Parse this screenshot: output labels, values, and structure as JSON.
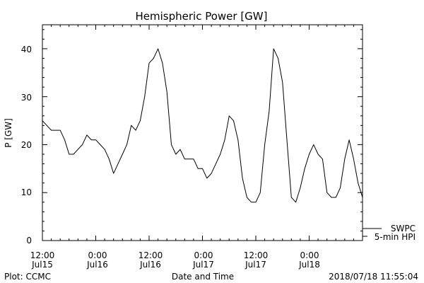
{
  "chart_data": {
    "type": "line",
    "title": "Hemispheric Power [GW]",
    "ylabel": "P [GW]",
    "xlabel": "Date and Time",
    "ylim": [
      0,
      45
    ],
    "xlim": [
      "2018-07-15 12:00",
      "2018-07-18 12:00"
    ],
    "yticks": [
      "0",
      "10",
      "20",
      "30",
      "40"
    ],
    "xticks": [
      {
        "time": "2018-07-15 12:00",
        "line1": "12:00",
        "line2": "Jul15"
      },
      {
        "time": "2018-07-16 00:00",
        "line1": "0:00",
        "line2": "Jul16"
      },
      {
        "time": "2018-07-16 12:00",
        "line1": "12:00",
        "line2": "Jul16"
      },
      {
        "time": "2018-07-17 00:00",
        "line1": "0:00",
        "line2": "Jul17"
      },
      {
        "time": "2018-07-17 12:00",
        "line1": "12:00",
        "line2": "Jul17"
      },
      {
        "time": "2018-07-18 00:00",
        "line1": "0:00",
        "line2": "Jul18"
      }
    ],
    "legend": {
      "label1": "SWPC",
      "label2": "5-min HPI",
      "placement": "right"
    },
    "series": [
      {
        "name": "5-min HPI",
        "color": "#000000",
        "x": [
          "2018-07-15 12:00",
          "2018-07-15 13:00",
          "2018-07-15 14:00",
          "2018-07-15 15:00",
          "2018-07-15 16:00",
          "2018-07-15 17:00",
          "2018-07-15 18:00",
          "2018-07-15 19:00",
          "2018-07-15 20:00",
          "2018-07-15 21:00",
          "2018-07-15 22:00",
          "2018-07-15 23:00",
          "2018-07-16 00:00",
          "2018-07-16 01:00",
          "2018-07-16 02:00",
          "2018-07-16 03:00",
          "2018-07-16 04:00",
          "2018-07-16 05:00",
          "2018-07-16 06:00",
          "2018-07-16 07:00",
          "2018-07-16 08:00",
          "2018-07-16 09:00",
          "2018-07-16 10:00",
          "2018-07-16 11:00",
          "2018-07-16 12:00",
          "2018-07-16 13:00",
          "2018-07-16 14:00",
          "2018-07-16 15:00",
          "2018-07-16 16:00",
          "2018-07-16 17:00",
          "2018-07-16 18:00",
          "2018-07-16 19:00",
          "2018-07-16 20:00",
          "2018-07-16 21:00",
          "2018-07-16 22:00",
          "2018-07-16 23:00",
          "2018-07-17 00:00",
          "2018-07-17 01:00",
          "2018-07-17 02:00",
          "2018-07-17 03:00",
          "2018-07-17 04:00",
          "2018-07-17 05:00",
          "2018-07-17 06:00",
          "2018-07-17 07:00",
          "2018-07-17 08:00",
          "2018-07-17 09:00",
          "2018-07-17 10:00",
          "2018-07-17 11:00",
          "2018-07-17 12:00",
          "2018-07-17 13:00",
          "2018-07-17 14:00",
          "2018-07-17 15:00",
          "2018-07-17 16:00",
          "2018-07-17 17:00",
          "2018-07-17 18:00",
          "2018-07-17 19:00",
          "2018-07-17 20:00",
          "2018-07-17 21:00",
          "2018-07-17 22:00",
          "2018-07-17 23:00",
          "2018-07-18 00:00",
          "2018-07-18 01:00",
          "2018-07-18 02:00",
          "2018-07-18 03:00",
          "2018-07-18 04:00",
          "2018-07-18 05:00",
          "2018-07-18 06:00",
          "2018-07-18 07:00",
          "2018-07-18 08:00",
          "2018-07-18 09:00",
          "2018-07-18 10:00",
          "2018-07-18 11:00",
          "2018-07-18 12:00"
        ],
        "y": [
          25,
          24,
          23,
          23,
          23,
          21,
          18,
          18,
          19,
          20,
          22,
          21,
          21,
          20,
          19,
          17,
          14,
          16,
          18,
          20,
          24,
          23,
          25,
          30,
          37,
          38,
          40,
          37,
          31,
          20,
          18,
          19,
          17,
          17,
          17,
          15,
          15,
          13,
          14,
          16,
          18,
          21,
          26,
          25,
          21,
          13,
          9,
          8,
          8,
          10,
          20,
          27,
          40,
          38,
          33,
          21,
          9,
          8,
          11,
          15,
          18,
          20,
          18,
          17,
          10,
          9,
          9,
          11,
          17,
          21,
          17,
          12,
          9
        ]
      }
    ]
  },
  "footer": {
    "left": "Plot: CCMC",
    "center": "Date and Time",
    "right": "2018/07/18 11:55:04"
  }
}
